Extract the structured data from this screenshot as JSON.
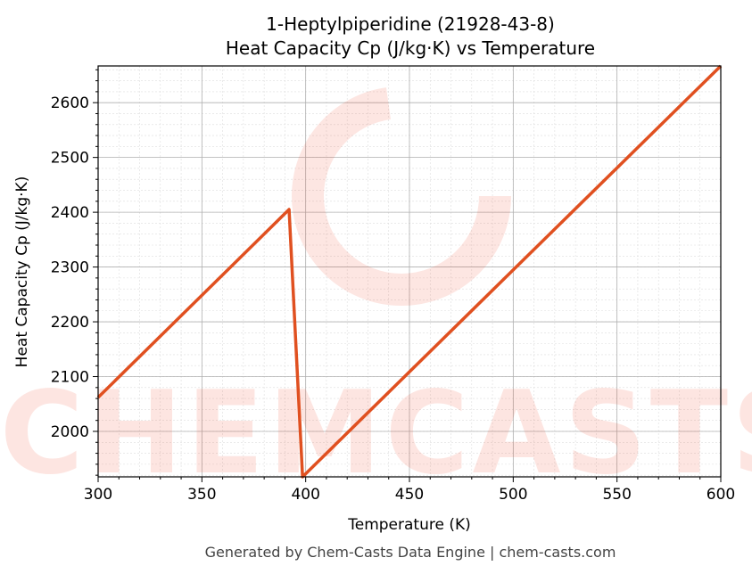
{
  "chart_data": {
    "type": "line",
    "title": "1-Heptylpiperidine (21928-43-8)",
    "subtitle": "Heat Capacity Cp (J/kg·K) vs Temperature",
    "xlabel": "Temperature (K)",
    "ylabel": "Heat Capacity Cp (J/kg·K)",
    "xlim": [
      300,
      600
    ],
    "ylim": [
      1917,
      2667
    ],
    "xticks": [
      300,
      350,
      400,
      450,
      500,
      550,
      600
    ],
    "yticks": [
      2000,
      2100,
      2200,
      2300,
      2400,
      2500,
      2600
    ],
    "grid": true,
    "series": [
      {
        "name": "Cp",
        "color": "#e05020",
        "x": [
          300,
          392,
          398.5,
          600
        ],
        "y": [
          2062,
          2405,
          1917,
          2667
        ]
      }
    ]
  },
  "watermark": "CHEMCASTS",
  "footer": "Generated by Chem-Casts Data Engine | chem-casts.com"
}
